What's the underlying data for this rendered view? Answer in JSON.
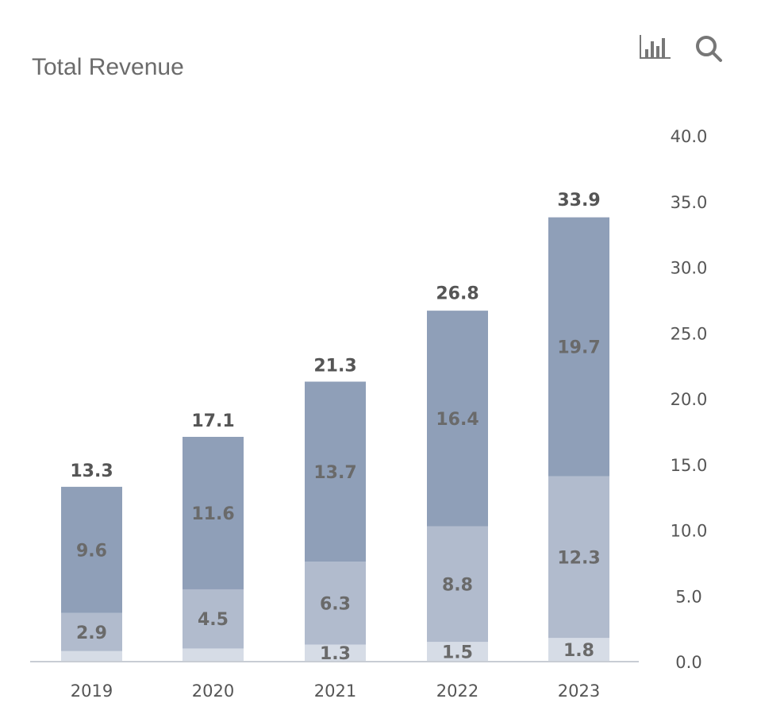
{
  "chart_data": {
    "type": "bar",
    "stacked": true,
    "title": "Total Revenue",
    "categories": [
      "2019",
      "2020",
      "2021",
      "2022",
      "2023"
    ],
    "series": [
      {
        "values": [
          0.8,
          1.0,
          1.3,
          1.5,
          1.8
        ],
        "label_visible": [
          false,
          false,
          true,
          true,
          true
        ],
        "color": "#d6dce6"
      },
      {
        "values": [
          2.9,
          4.5,
          6.3,
          8.8,
          12.3
        ],
        "label_visible": [
          true,
          true,
          true,
          true,
          true
        ],
        "color": "#b1bbcd"
      },
      {
        "values": [
          9.6,
          11.6,
          13.7,
          16.4,
          19.7
        ],
        "label_visible": [
          true,
          true,
          true,
          true,
          true
        ],
        "color": "#8f9fb8"
      }
    ],
    "totals": [
      13.3,
      17.1,
      21.3,
      26.8,
      33.9
    ],
    "yticks": [
      "0.0",
      "5.0",
      "10.0",
      "15.0",
      "20.0",
      "25.0",
      "30.0",
      "35.0",
      "40.0"
    ],
    "ylim": [
      0,
      40
    ],
    "yaxis_position": "right",
    "grid": false,
    "xlabel": "",
    "ylabel": ""
  },
  "toolbar": {
    "icons": [
      "bar-chart-icon",
      "search-icon"
    ]
  }
}
